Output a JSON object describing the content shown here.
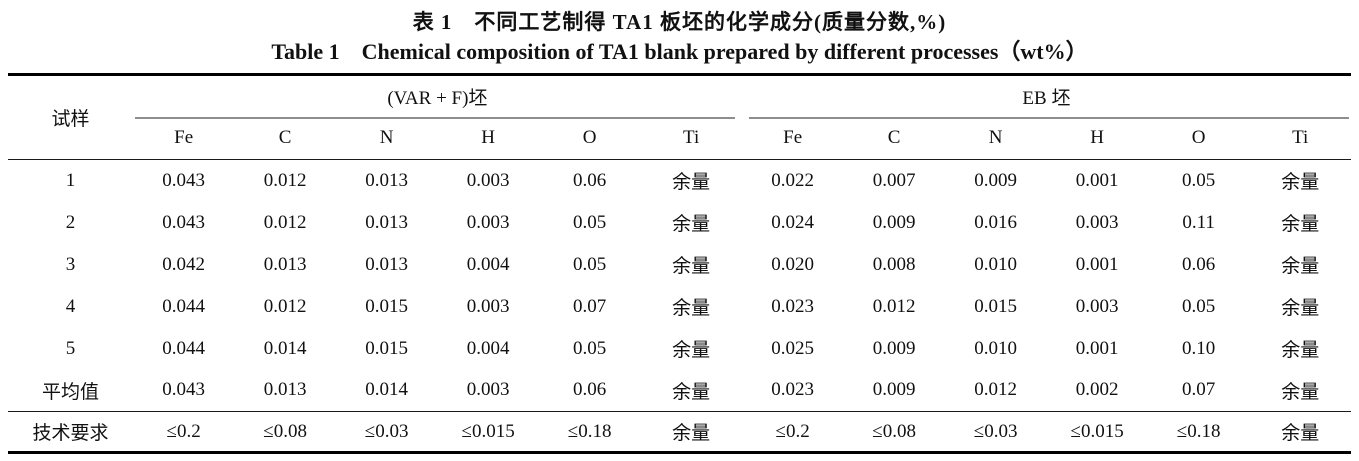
{
  "title": {
    "zh": "表 1　不同工艺制得 TA1 板坯的化学成分(质量分数,%)",
    "en": "Table 1　Chemical composition of TA1 blank prepared by different processes（wt%）"
  },
  "table": {
    "sample_header": "试样",
    "groups": [
      {
        "label": "(VAR + F)坯",
        "columns": [
          "Fe",
          "C",
          "N",
          "H",
          "O",
          "Ti"
        ]
      },
      {
        "label": "EB 坯",
        "columns": [
          "Fe",
          "C",
          "N",
          "H",
          "O",
          "Ti"
        ]
      }
    ],
    "rows": [
      {
        "sample": "1",
        "var_f": [
          "0.043",
          "0.012",
          "0.013",
          "0.003",
          "0.06",
          "余量"
        ],
        "eb": [
          "0.022",
          "0.007",
          "0.009",
          "0.001",
          "0.05",
          "余量"
        ]
      },
      {
        "sample": "2",
        "var_f": [
          "0.043",
          "0.012",
          "0.013",
          "0.003",
          "0.05",
          "余量"
        ],
        "eb": [
          "0.024",
          "0.009",
          "0.016",
          "0.003",
          "0.11",
          "余量"
        ]
      },
      {
        "sample": "3",
        "var_f": [
          "0.042",
          "0.013",
          "0.013",
          "0.004",
          "0.05",
          "余量"
        ],
        "eb": [
          "0.020",
          "0.008",
          "0.010",
          "0.001",
          "0.06",
          "余量"
        ]
      },
      {
        "sample": "4",
        "var_f": [
          "0.044",
          "0.012",
          "0.015",
          "0.003",
          "0.07",
          "余量"
        ],
        "eb": [
          "0.023",
          "0.012",
          "0.015",
          "0.003",
          "0.05",
          "余量"
        ]
      },
      {
        "sample": "5",
        "var_f": [
          "0.044",
          "0.014",
          "0.015",
          "0.004",
          "0.05",
          "余量"
        ],
        "eb": [
          "0.025",
          "0.009",
          "0.010",
          "0.001",
          "0.10",
          "余量"
        ]
      },
      {
        "sample": "平均值",
        "var_f": [
          "0.043",
          "0.013",
          "0.014",
          "0.003",
          "0.06",
          "余量"
        ],
        "eb": [
          "0.023",
          "0.009",
          "0.012",
          "0.002",
          "0.07",
          "余量"
        ]
      }
    ],
    "requirement_row": {
      "sample": "技术要求",
      "var_f": [
        "≤0.2",
        "≤0.08",
        "≤0.03",
        "≤0.015",
        "≤0.18",
        "余量"
      ],
      "eb": [
        "≤0.2",
        "≤0.08",
        "≤0.03",
        "≤0.015",
        "≤0.18",
        "余量"
      ]
    }
  }
}
